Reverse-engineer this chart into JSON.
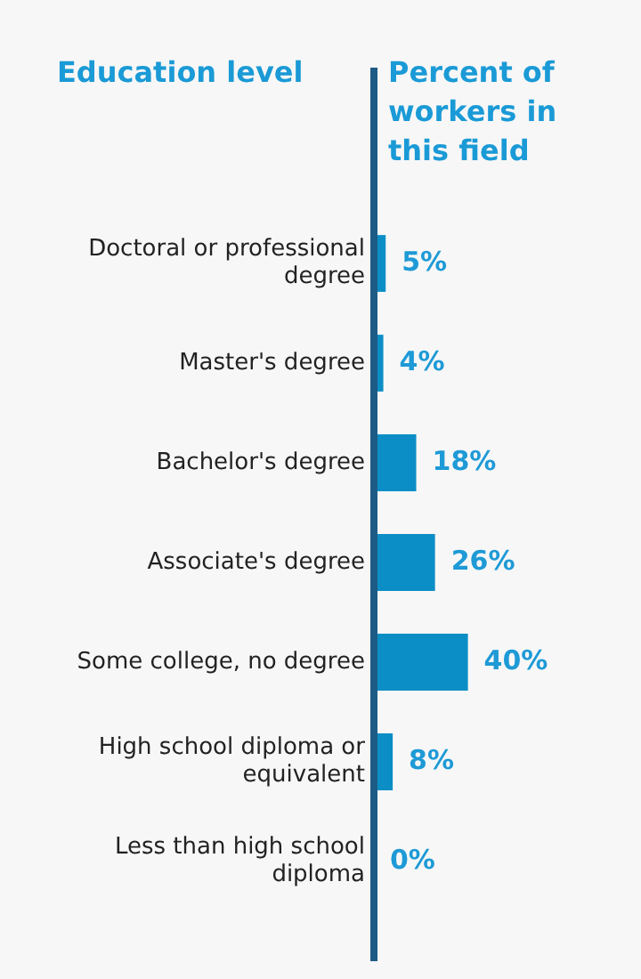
{
  "chart_data": {
    "type": "bar",
    "orientation": "horizontal",
    "ylabel": "Education level",
    "xlabel": "Percent of workers in this field",
    "categories": [
      "Doctoral or professional degree",
      "Master's degree",
      "Bachelor's degree",
      "Associate's degree",
      "Some college, no degree",
      "High school diploma or equivalent",
      "Less than high school diploma"
    ],
    "values": [
      5,
      4,
      18,
      26,
      40,
      8,
      0
    ],
    "value_labels": [
      "5%",
      "4%",
      "18%",
      "26%",
      "40%",
      "8%",
      "0%"
    ],
    "color": "#0b8ec5",
    "tick_labels": "y",
    "grid": false,
    "legend": false
  }
}
